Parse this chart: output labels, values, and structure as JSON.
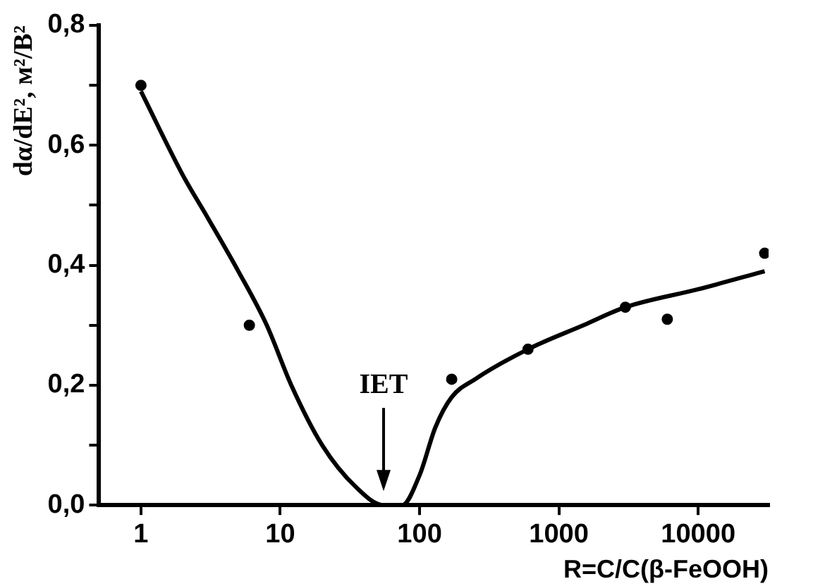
{
  "chart_data": {
    "type": "scatter",
    "xlabel": "R=C/C(β-FeOOH)",
    "ylabel": "dα/dE², м²/В²",
    "log": "x",
    "xlim": [
      0.5,
      32000
    ],
    "ylim": [
      0,
      0.8
    ],
    "xticks": [
      1,
      10,
      100,
      1000,
      10000
    ],
    "yticks": [
      {
        "value": 0,
        "label": "0,0"
      },
      {
        "value": 0.1,
        "label": null
      },
      {
        "value": 0.2,
        "label": "0,2"
      },
      {
        "value": 0.3,
        "label": null
      },
      {
        "value": 0.4,
        "label": "0,4"
      },
      {
        "value": 0.5,
        "label": null
      },
      {
        "value": 0.6,
        "label": "0,6"
      },
      {
        "value": 0.7,
        "label": null
      },
      {
        "value": 0.8,
        "label": "0,8"
      }
    ],
    "grid": false,
    "legend": false,
    "series": [
      {
        "type": "scatter",
        "color": "#000000",
        "marker": "circle",
        "x": [
          1,
          6,
          170,
          600,
          3000,
          6000,
          30000
        ],
        "values": [
          0.7,
          0.3,
          0.21,
          0.26,
          0.33,
          0.31,
          0.42
        ]
      },
      {
        "type": "line",
        "color": "#000000",
        "marker": "none",
        "line_style": "solid",
        "x": [
          1,
          2,
          3,
          5,
          8,
          12,
          20,
          35,
          55,
          75,
          100,
          130,
          170,
          250,
          600,
          1500,
          3000,
          10000,
          30000
        ],
        "values": [
          0.69,
          0.55,
          0.48,
          0.39,
          0.3,
          0.2,
          0.1,
          0.03,
          0.0,
          0.0,
          0.05,
          0.13,
          0.18,
          0.21,
          0.26,
          0.3,
          0.33,
          0.36,
          0.39
        ]
      }
    ],
    "annotations": [
      "IET"
    ]
  }
}
